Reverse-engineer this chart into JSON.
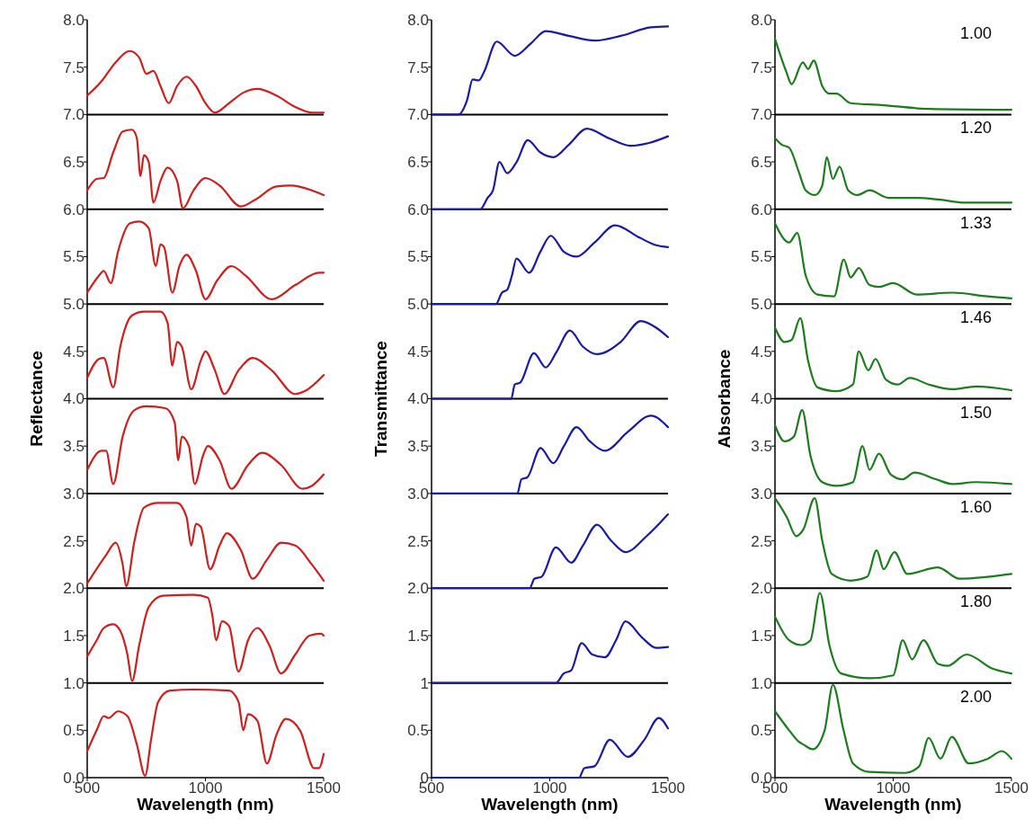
{
  "chart_data": [
    {
      "type": "line",
      "xlabel": "Wavelength (nm)",
      "ylabel": "Reflectance",
      "xlim": [
        500,
        1500
      ],
      "ylim": [
        0,
        8
      ],
      "xticks": [
        500,
        1000,
        1500
      ],
      "yticks": [
        {
          "value": 0,
          "label": "0.0"
        },
        {
          "value": 0.5,
          "label": "0.5"
        },
        {
          "value": 1,
          "label": "1.0"
        },
        {
          "value": 1.5,
          "label": "1.5"
        },
        {
          "value": 2,
          "label": "2.0"
        },
        {
          "value": 2.5,
          "label": "2.5"
        },
        {
          "value": 3,
          "label": "3.0"
        },
        {
          "value": 3.5,
          "label": "3.5"
        },
        {
          "value": 4,
          "label": "4.0"
        },
        {
          "value": 4.5,
          "label": "4.5"
        },
        {
          "value": 5,
          "label": "5.0"
        },
        {
          "value": 5.5,
          "label": "5.5"
        },
        {
          "value": 6,
          "label": "6.0"
        },
        {
          "value": 6.5,
          "label": "6.5"
        },
        {
          "value": 7,
          "label": "7.0"
        },
        {
          "value": 7.5,
          "label": "7.5"
        },
        {
          "value": 8,
          "label": "8.0"
        }
      ],
      "ref_lines": [
        {
          "axis": "y",
          "value": 1,
          "color": "#000000"
        },
        {
          "axis": "y",
          "value": 2,
          "color": "#000000"
        },
        {
          "axis": "y",
          "value": 3,
          "color": "#000000"
        },
        {
          "axis": "y",
          "value": 4,
          "color": "#000000"
        },
        {
          "axis": "y",
          "value": 5,
          "color": "#000000"
        },
        {
          "axis": "y",
          "value": 6,
          "color": "#000000"
        },
        {
          "axis": "y",
          "value": 7,
          "color": "#000000"
        }
      ],
      "series": [
        {
          "color": "#cc1f1f",
          "x": [
            500,
            560,
            620,
            680,
            720,
            750,
            780,
            810,
            845,
            880,
            920,
            960,
            1000,
            1040,
            1100,
            1160,
            1220,
            1300,
            1380,
            1450,
            1500
          ],
          "values": [
            7.2,
            7.35,
            7.55,
            7.67,
            7.6,
            7.43,
            7.46,
            7.3,
            7.12,
            7.3,
            7.4,
            7.3,
            7.12,
            7.02,
            7.12,
            7.23,
            7.27,
            7.2,
            7.08,
            7.02,
            7.02
          ]
        },
        {
          "color": "#cc1f1f",
          "x": [
            500,
            540,
            570,
            610,
            650,
            690,
            710,
            725,
            740,
            760,
            780,
            810,
            840,
            880,
            905,
            950,
            1000,
            1060,
            1150,
            1210,
            1300,
            1360,
            1450,
            1500
          ],
          "values": [
            6.2,
            6.32,
            6.33,
            6.6,
            6.82,
            6.84,
            6.75,
            6.35,
            6.57,
            6.5,
            6.07,
            6.3,
            6.44,
            6.3,
            6.01,
            6.2,
            6.33,
            6.25,
            6.03,
            6.1,
            6.24,
            6.25,
            6.2,
            6.15
          ]
        },
        {
          "color": "#cc1f1f",
          "x": [
            500,
            550,
            570,
            600,
            630,
            680,
            720,
            760,
            790,
            810,
            825,
            860,
            890,
            920,
            960,
            1000,
            1050,
            1110,
            1170,
            1280,
            1380,
            1480,
            1500
          ],
          "values": [
            5.12,
            5.3,
            5.35,
            5.22,
            5.55,
            5.85,
            5.87,
            5.8,
            5.4,
            5.63,
            5.6,
            5.12,
            5.4,
            5.52,
            5.35,
            5.05,
            5.25,
            5.4,
            5.3,
            5.05,
            5.2,
            5.33,
            5.33
          ]
        },
        {
          "color": "#cc1f1f",
          "x": [
            500,
            550,
            570,
            610,
            640,
            690,
            740,
            810,
            840,
            860,
            880,
            900,
            940,
            980,
            1000,
            1040,
            1080,
            1140,
            1200,
            1280,
            1380,
            1420,
            1500
          ],
          "values": [
            4.22,
            4.42,
            4.43,
            4.12,
            4.55,
            4.88,
            4.92,
            4.92,
            4.8,
            4.35,
            4.6,
            4.55,
            4.1,
            4.4,
            4.5,
            4.3,
            4.05,
            4.3,
            4.43,
            4.3,
            4.05,
            4.08,
            4.25
          ]
        },
        {
          "color": "#cc1f1f",
          "x": [
            500,
            560,
            580,
            610,
            650,
            700,
            750,
            830,
            870,
            885,
            900,
            930,
            955,
            990,
            1010,
            1060,
            1110,
            1180,
            1240,
            1320,
            1410,
            1450,
            1500
          ],
          "values": [
            3.25,
            3.45,
            3.45,
            3.1,
            3.6,
            3.88,
            3.92,
            3.9,
            3.75,
            3.35,
            3.6,
            3.5,
            3.1,
            3.4,
            3.5,
            3.35,
            3.05,
            3.3,
            3.43,
            3.3,
            3.05,
            3.08,
            3.2
          ]
        },
        {
          "color": "#cc1f1f",
          "x": [
            500,
            580,
            620,
            650,
            665,
            700,
            740,
            800,
            880,
            920,
            940,
            960,
            980,
            1020,
            1060,
            1090,
            1150,
            1200,
            1260,
            1320,
            1380,
            1450,
            1500
          ],
          "values": [
            2.05,
            2.35,
            2.48,
            2.25,
            2.02,
            2.5,
            2.85,
            2.9,
            2.9,
            2.75,
            2.45,
            2.68,
            2.65,
            2.2,
            2.45,
            2.58,
            2.4,
            2.1,
            2.3,
            2.48,
            2.45,
            2.25,
            2.08
          ]
        },
        {
          "color": "#cc1f1f",
          "x": [
            500,
            540,
            570,
            610,
            640,
            670,
            690,
            720,
            760,
            820,
            950,
            1010,
            1030,
            1045,
            1070,
            1100,
            1140,
            1180,
            1220,
            1270,
            1320,
            1380,
            1440,
            1490,
            1500
          ],
          "values": [
            1.28,
            1.45,
            1.58,
            1.62,
            1.55,
            1.3,
            1.02,
            1.4,
            1.8,
            1.92,
            1.93,
            1.9,
            1.7,
            1.45,
            1.65,
            1.6,
            1.12,
            1.45,
            1.58,
            1.4,
            1.1,
            1.3,
            1.5,
            1.52,
            1.5
          ]
        },
        {
          "color": "#cc1f1f",
          "x": [
            500,
            540,
            570,
            590,
            630,
            670,
            710,
            745,
            770,
            800,
            850,
            950,
            1100,
            1140,
            1160,
            1180,
            1220,
            1260,
            1300,
            1340,
            1400,
            1460,
            1480,
            1500
          ],
          "values": [
            0.28,
            0.5,
            0.65,
            0.63,
            0.7,
            0.65,
            0.35,
            0.02,
            0.4,
            0.8,
            0.92,
            0.93,
            0.92,
            0.8,
            0.5,
            0.67,
            0.6,
            0.15,
            0.45,
            0.62,
            0.5,
            0.1,
            0.1,
            0.25
          ]
        }
      ]
    },
    {
      "type": "line",
      "xlabel": "Wavelength (nm)",
      "ylabel": "Transmittance",
      "xlim": [
        500,
        1500
      ],
      "ylim": [
        0,
        8
      ],
      "xticks": [
        500,
        1000,
        1500
      ],
      "yticks": [
        0,
        0.5,
        1,
        1.5,
        {
          "value": 2,
          "label": "2.0"
        },
        2.5,
        {
          "value": 3,
          "label": "3.0"
        },
        3.5,
        {
          "value": 4,
          "label": "4.0"
        },
        4.5,
        {
          "value": 5,
          "label": "5.0"
        },
        5.5,
        {
          "value": 6,
          "label": "6.0"
        },
        6.5,
        {
          "value": 7,
          "label": "7.0"
        },
        7.5,
        {
          "value": 8,
          "label": "8.0"
        }
      ],
      "ref_lines": [
        {
          "axis": "y",
          "value": 1,
          "color": "#000000"
        },
        {
          "axis": "y",
          "value": 2,
          "color": "#000000"
        },
        {
          "axis": "y",
          "value": 3,
          "color": "#000000"
        },
        {
          "axis": "y",
          "value": 4,
          "color": "#000000"
        },
        {
          "axis": "y",
          "value": 5,
          "color": "#000000"
        },
        {
          "axis": "y",
          "value": 6,
          "color": "#000000"
        },
        {
          "axis": "y",
          "value": 7,
          "color": "#000000"
        }
      ],
      "series": [
        {
          "color": "#1a1aa0",
          "x": [
            500,
            613,
            650,
            674,
            700,
            722,
            776,
            852,
            920,
            983,
            1080,
            1191,
            1300,
            1428,
            1500
          ],
          "values": [
            7,
            7,
            7.15,
            7.37,
            7.36,
            7.45,
            7.77,
            7.62,
            7.75,
            7.88,
            7.83,
            7.78,
            7.83,
            7.92,
            7.93
          ]
        },
        {
          "color": "#1a1aa0",
          "x": [
            500,
            706,
            737,
            760,
            787,
            820,
            860,
            907,
            960,
            1015,
            1080,
            1157,
            1250,
            1341,
            1420,
            1500
          ],
          "values": [
            6,
            6,
            6.12,
            6.2,
            6.5,
            6.38,
            6.5,
            6.73,
            6.6,
            6.55,
            6.68,
            6.85,
            6.75,
            6.67,
            6.7,
            6.77
          ]
        },
        {
          "color": "#1a1aa0",
          "x": [
            500,
            772,
            798,
            820,
            840,
            859,
            913,
            960,
            1004,
            1060,
            1113,
            1190,
            1276,
            1380,
            1450,
            1500
          ],
          "values": [
            5,
            5,
            5.12,
            5.15,
            5.3,
            5.48,
            5.33,
            5.55,
            5.72,
            5.55,
            5.5,
            5.65,
            5.83,
            5.7,
            5.62,
            5.6
          ]
        },
        {
          "color": "#1a1aa0",
          "x": [
            500,
            837,
            852,
            875,
            933,
            983,
            1030,
            1085,
            1140,
            1200,
            1300,
            1385,
            1450,
            1500
          ],
          "values": [
            4,
            4,
            4.15,
            4.17,
            4.48,
            4.33,
            4.5,
            4.72,
            4.55,
            4.47,
            4.6,
            4.82,
            4.75,
            4.65
          ]
        },
        {
          "color": "#1a1aa0",
          "x": [
            500,
            863,
            880,
            905,
            961,
            1015,
            1060,
            1113,
            1170,
            1233,
            1330,
            1428,
            1500
          ],
          "values": [
            3,
            3,
            3.15,
            3.17,
            3.48,
            3.32,
            3.5,
            3.7,
            3.55,
            3.45,
            3.65,
            3.82,
            3.7
          ]
        },
        {
          "color": "#1a1aa0",
          "x": [
            500,
            915,
            935,
            965,
            1026,
            1091,
            1140,
            1200,
            1260,
            1320,
            1410,
            1500
          ],
          "values": [
            2,
            2,
            2.1,
            2.12,
            2.43,
            2.27,
            2.45,
            2.67,
            2.5,
            2.38,
            2.55,
            2.78
          ]
        },
        {
          "color": "#1a1aa0",
          "x": [
            500,
            1026,
            1059,
            1090,
            1135,
            1180,
            1233,
            1280,
            1320,
            1390,
            1450,
            1500
          ],
          "values": [
            1,
            1,
            1.1,
            1.13,
            1.42,
            1.3,
            1.27,
            1.45,
            1.65,
            1.48,
            1.37,
            1.38
          ]
        },
        {
          "color": "#1a1aa0",
          "x": [
            500,
            1124,
            1146,
            1189,
            1254,
            1330,
            1400,
            1461,
            1500
          ],
          "values": [
            0,
            0,
            0.1,
            0.12,
            0.4,
            0.22,
            0.4,
            0.63,
            0.52
          ]
        }
      ]
    },
    {
      "type": "line",
      "xlabel": "Wavelength (nm)",
      "ylabel": "Absorbance",
      "annotations": [
        "1.00",
        "1.20",
        "1.33",
        "1.46",
        "1.50",
        "1.60",
        "1.80",
        "2.00"
      ],
      "xlim": [
        500,
        1500
      ],
      "ylim": [
        0,
        8
      ],
      "xticks": [
        500,
        1000,
        1500
      ],
      "yticks": [
        {
          "value": 0,
          "label": "0.0"
        },
        {
          "value": 0.5,
          "label": "0.5"
        },
        {
          "value": 1,
          "label": "1.0"
        },
        {
          "value": 1.5,
          "label": "1.5"
        },
        {
          "value": 2,
          "label": "2.0"
        },
        {
          "value": 2.5,
          "label": "2.5"
        },
        {
          "value": 3,
          "label": "3.0"
        },
        {
          "value": 3.5,
          "label": "3.5"
        },
        {
          "value": 4,
          "label": "4.0"
        },
        {
          "value": 4.5,
          "label": "4.5"
        },
        {
          "value": 5,
          "label": "5.0"
        },
        {
          "value": 5.5,
          "label": "5.5"
        },
        {
          "value": 6,
          "label": "6.0"
        },
        {
          "value": 6.5,
          "label": "6.5"
        },
        {
          "value": 7,
          "label": "7.0"
        },
        {
          "value": 7.5,
          "label": "7.5"
        },
        {
          "value": 8,
          "label": "8.0"
        }
      ],
      "ref_lines": [
        {
          "axis": "y",
          "value": 1,
          "color": "#000000"
        },
        {
          "axis": "y",
          "value": 2,
          "color": "#000000"
        },
        {
          "axis": "y",
          "value": 3,
          "color": "#000000"
        },
        {
          "axis": "y",
          "value": 4,
          "color": "#000000"
        },
        {
          "axis": "y",
          "value": 5,
          "color": "#000000"
        },
        {
          "axis": "y",
          "value": 6,
          "color": "#000000"
        },
        {
          "axis": "y",
          "value": 7,
          "color": "#000000"
        }
      ],
      "series": [
        {
          "color": "#1e7a1e",
          "x": [
            500,
            548,
            570,
            618,
            640,
            664,
            700,
            730,
            760,
            820,
            950,
            1150,
            1500
          ],
          "values": [
            7.8,
            7.45,
            7.32,
            7.55,
            7.48,
            7.57,
            7.3,
            7.22,
            7.22,
            7.12,
            7.1,
            7.06,
            7.05
          ]
        },
        {
          "color": "#1e7a1e",
          "x": [
            500,
            530,
            560,
            600,
            630,
            670,
            700,
            719,
            745,
            773,
            810,
            850,
            900,
            980,
            1100,
            1200,
            1300,
            1500
          ],
          "values": [
            6.75,
            6.68,
            6.65,
            6.4,
            6.2,
            6.15,
            6.25,
            6.55,
            6.32,
            6.45,
            6.2,
            6.15,
            6.2,
            6.12,
            6.12,
            6.1,
            6.07,
            6.07
          ]
        },
        {
          "color": "#1e7a1e",
          "x": [
            500,
            560,
            594,
            630,
            680,
            750,
            791,
            820,
            855,
            900,
            940,
            1000,
            1100,
            1250,
            1400,
            1500
          ],
          "values": [
            5.85,
            5.65,
            5.75,
            5.3,
            5.1,
            5.08,
            5.47,
            5.28,
            5.38,
            5.2,
            5.18,
            5.22,
            5.1,
            5.12,
            5.08,
            5.06
          ]
        },
        {
          "color": "#1e7a1e",
          "x": [
            500,
            540,
            570,
            607,
            640,
            680,
            760,
            830,
            854,
            895,
            925,
            970,
            1020,
            1070,
            1150,
            1250,
            1350,
            1500
          ],
          "values": [
            4.75,
            4.6,
            4.62,
            4.85,
            4.4,
            4.12,
            4.08,
            4.15,
            4.5,
            4.3,
            4.42,
            4.2,
            4.15,
            4.22,
            4.15,
            4.1,
            4.13,
            4.09
          ]
        },
        {
          "color": "#1e7a1e",
          "x": [
            500,
            540,
            580,
            615,
            650,
            700,
            760,
            830,
            870,
            900,
            940,
            990,
            1040,
            1090,
            1180,
            1250,
            1350,
            1500
          ],
          "values": [
            3.72,
            3.55,
            3.6,
            3.88,
            3.4,
            3.12,
            3.08,
            3.12,
            3.5,
            3.25,
            3.42,
            3.2,
            3.15,
            3.22,
            3.15,
            3.1,
            3.12,
            3.1
          ]
        },
        {
          "color": "#1e7a1e",
          "x": [
            500,
            550,
            590,
            620,
            668,
            700,
            740,
            820,
            890,
            930,
            960,
            1005,
            1060,
            1189,
            1280,
            1400,
            1500
          ],
          "values": [
            2.95,
            2.75,
            2.55,
            2.62,
            2.95,
            2.5,
            2.15,
            2.08,
            2.12,
            2.4,
            2.2,
            2.38,
            2.15,
            2.22,
            2.1,
            2.12,
            2.15
          ]
        },
        {
          "color": "#1e7a1e",
          "x": [
            500,
            560,
            610,
            650,
            690,
            730,
            780,
            900,
            1000,
            1040,
            1080,
            1128,
            1190,
            1230,
            1310,
            1420,
            1500
          ],
          "values": [
            1.7,
            1.45,
            1.4,
            1.45,
            1.95,
            1.4,
            1.1,
            1.05,
            1.08,
            1.45,
            1.25,
            1.45,
            1.2,
            1.18,
            1.3,
            1.15,
            1.1
          ]
        },
        {
          "color": "#1e7a1e",
          "x": [
            500,
            560,
            600,
            620,
            660,
            710,
            745,
            790,
            830,
            900,
            1050,
            1110,
            1150,
            1200,
            1248,
            1320,
            1400,
            1460,
            1500
          ],
          "values": [
            0.7,
            0.5,
            0.38,
            0.35,
            0.3,
            0.5,
            0.98,
            0.5,
            0.15,
            0.06,
            0.05,
            0.12,
            0.42,
            0.2,
            0.43,
            0.15,
            0.2,
            0.28,
            0.2
          ]
        }
      ]
    }
  ]
}
